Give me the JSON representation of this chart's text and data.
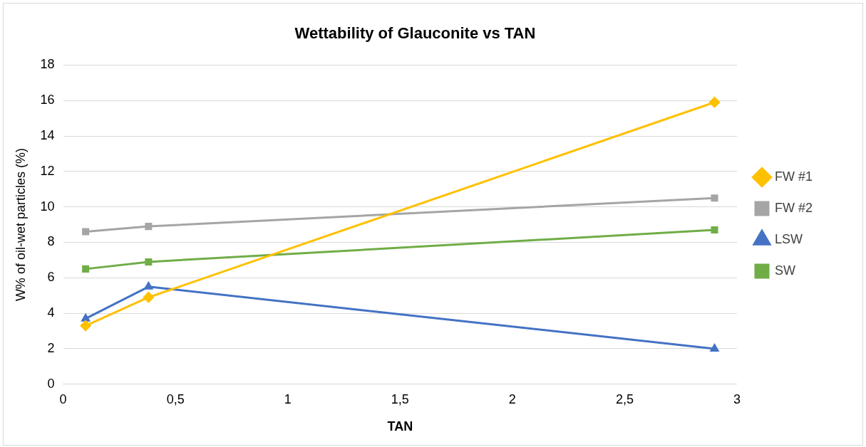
{
  "chart_data": {
    "type": "line",
    "title": "Wettability of Glauconite vs TAN",
    "xlabel": "TAN",
    "ylabel": "W% of oil-wet particles (%)",
    "x": [
      0.1,
      0.38,
      2.9
    ],
    "series": [
      {
        "name": "FW #1",
        "color": "#ffc000",
        "marker": "diamond",
        "values": [
          3.3,
          4.9,
          15.9
        ]
      },
      {
        "name": "FW #2",
        "color": "#a5a5a5",
        "marker": "square",
        "values": [
          8.6,
          8.9,
          10.5
        ]
      },
      {
        "name": "LSW",
        "color": "#4472c4",
        "marker": "triangle",
        "values": [
          3.7,
          5.5,
          2.0
        ]
      },
      {
        "name": "SW",
        "color": "#70ad47",
        "marker": "square",
        "values": [
          6.5,
          6.9,
          8.7
        ]
      }
    ],
    "xlim": [
      0,
      3
    ],
    "xticks": [
      0,
      {
        "value": 0.5,
        "label": "0,5"
      },
      1,
      {
        "value": 1.5,
        "label": "1,5"
      },
      2,
      {
        "value": 2.5,
        "label": "2,5"
      },
      3
    ],
    "ylim": [
      0,
      18
    ],
    "yticks": [
      0,
      2,
      4,
      6,
      8,
      10,
      12,
      14,
      16,
      18
    ],
    "grid": "y",
    "legend": "right",
    "line_style": "solid"
  }
}
